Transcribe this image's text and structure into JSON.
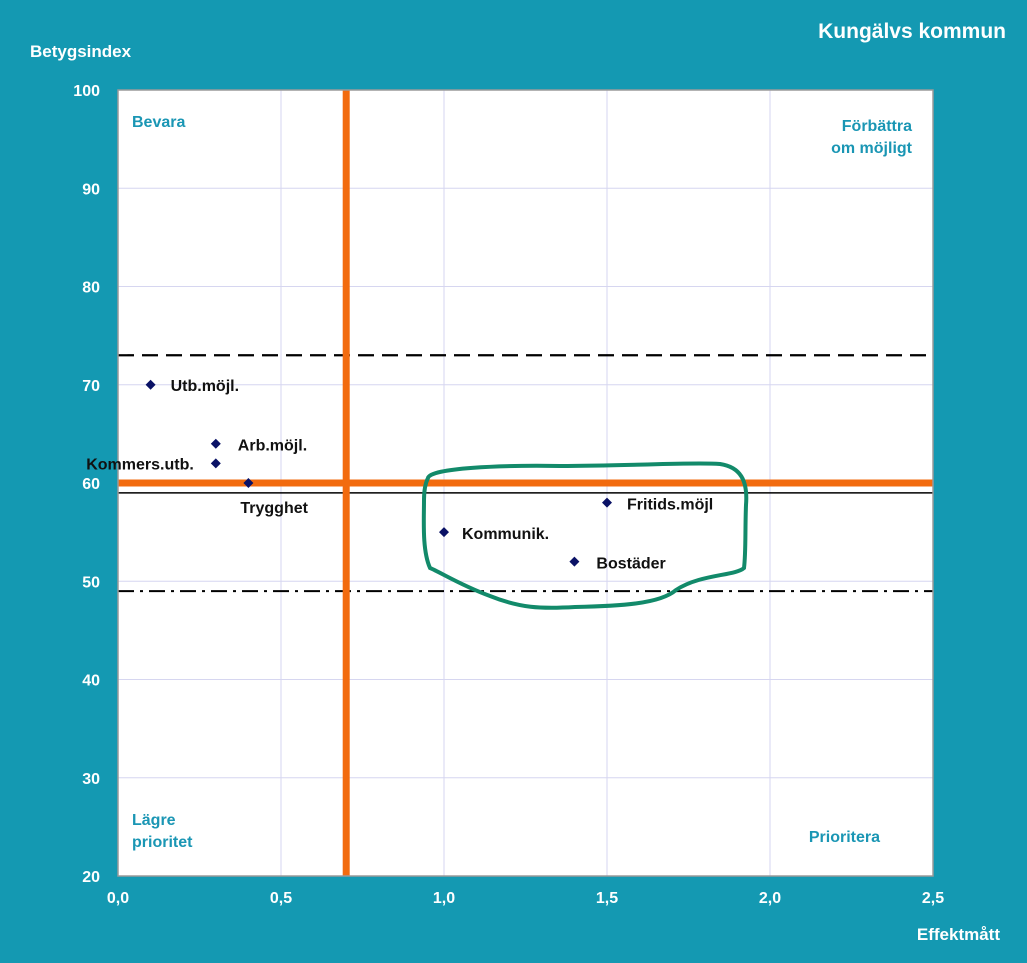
{
  "header": {
    "brand": "Kungälvs kommun"
  },
  "colors": {
    "background": "#1499b2",
    "plot_area": "#ffffff",
    "grid": "#d6d6f0",
    "threshold_lines": "#f26b0f",
    "points": "#0a1266",
    "quadrant_text": "#1a96b4",
    "highlight_circle": "#128a6a"
  },
  "chart_data": {
    "type": "scatter",
    "xlabel": "Effektmått",
    "ylabel": "Betygsindex",
    "xlim": [
      0,
      2.5
    ],
    "ylim": [
      20,
      100
    ],
    "x_ticks": [
      "0,0",
      "0,5",
      "1,0",
      "1,5",
      "2,0",
      "2,5"
    ],
    "y_ticks": [
      "20",
      "30",
      "40",
      "50",
      "60",
      "70",
      "80",
      "90",
      "100"
    ],
    "grid": true,
    "points": [
      {
        "label": "Utb.möjl.",
        "x": 0.1,
        "y": 70
      },
      {
        "label": "Arb.möjl.",
        "x": 0.3,
        "y": 64
      },
      {
        "label": "Kommers.utb.",
        "x": 0.3,
        "y": 62
      },
      {
        "label": "Trygghet",
        "x": 0.4,
        "y": 60
      },
      {
        "label": "Fritids.möjl",
        "x": 1.5,
        "y": 58
      },
      {
        "label": "Kommunik.",
        "x": 1.0,
        "y": 55
      },
      {
        "label": "Bostäder",
        "x": 1.4,
        "y": 52
      }
    ],
    "threshold_x": 0.7,
    "threshold_y": 60,
    "reference_lines": [
      {
        "style": "dashed",
        "y": 73
      },
      {
        "style": "solid-thin",
        "y": 59
      },
      {
        "style": "dash-dot",
        "y": 49
      }
    ],
    "quadrants": {
      "top_left": [
        "Bevara"
      ],
      "top_right": [
        "Förbättra",
        "om möjligt"
      ],
      "bottom_left": [
        "Lägre",
        "prioritet"
      ],
      "bottom_right": [
        "Prioritera"
      ]
    },
    "highlight": {
      "points": [
        "Fritids.möjl",
        "Kommunik.",
        "Bostäder"
      ]
    }
  }
}
